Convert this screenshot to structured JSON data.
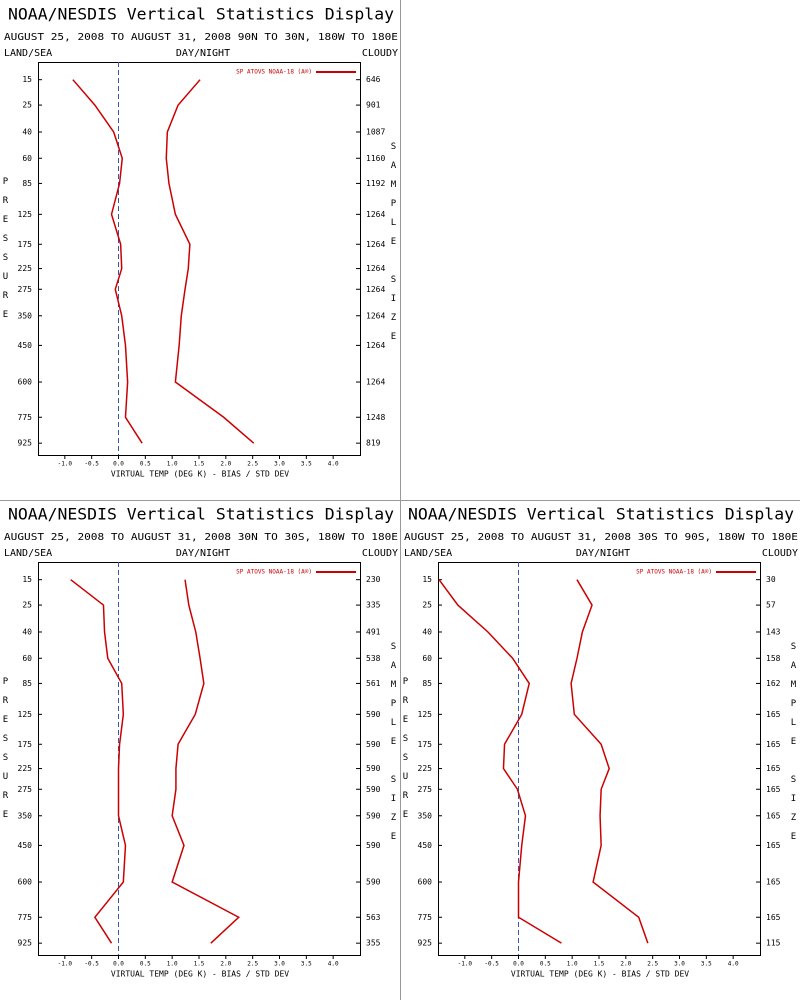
{
  "chart_data": [
    {
      "type": "line",
      "title": "NOAA/NESDIS Vertical Statistics Display",
      "subtitle": "AUGUST 25, 2008 TO AUGUST 31, 2008 90N TO 30N, 180W TO 180E",
      "left_label": "LAND/SEA",
      "center_label": "DAY/NIGHT",
      "right_label": "CLOUDY",
      "xlabel": "VIRTUAL TEMP (DEG K) - BIAS / STD DEV",
      "ylabel": "PRESSURE",
      "y2label": "SAMPLE SIZE",
      "legend": "SP ATOVS NOAA-18 (A®)",
      "yscale": "power",
      "y": [
        15,
        25,
        40,
        60,
        85,
        125,
        175,
        225,
        275,
        350,
        450,
        600,
        775,
        925
      ],
      "ylim": [
        10,
        1000
      ],
      "sample_size": [
        646,
        901,
        1087,
        1160,
        1192,
        1264,
        1264,
        1264,
        1264,
        1264,
        1264,
        1264,
        1248,
        819
      ],
      "xlim": [
        -1.5,
        4.5
      ],
      "xticks": [
        {
          "value": -1.0,
          "label": "-1.0"
        },
        -0.5,
        {
          "value": 0,
          "label": "0.0"
        },
        0.5,
        {
          "value": 1.0,
          "label": "1.0"
        },
        1.5,
        {
          "value": 2.0,
          "label": "2.0"
        },
        2.5,
        {
          "value": 3.0,
          "label": "3.0"
        },
        3.5,
        {
          "value": 4.0,
          "label": "4.0"
        }
      ],
      "series": [
        {
          "color": "#cc0000",
          "values": [
            -0.85,
            -0.44,
            -0.09,
            0.07,
            0.02,
            -0.13,
            0.04,
            0.06,
            -0.06,
            0.06,
            0.13,
            0.17,
            0.13,
            0.44
          ]
        },
        {
          "color": "#cc0000",
          "values": [
            1.52,
            1.11,
            0.91,
            0.89,
            0.94,
            1.06,
            1.33,
            1.3,
            1.24,
            1.17,
            1.13,
            1.06,
            1.96,
            2.52
          ]
        }
      ]
    },
    {
      "type": "line",
      "title": "NOAA/NESDIS Vertical Statistics Display",
      "subtitle": "AUGUST 25, 2008 TO AUGUST 31, 2008 30N TO 30S, 180W TO 180E",
      "left_label": "LAND/SEA",
      "center_label": "DAY/NIGHT",
      "right_label": "CLOUDY",
      "xlabel": "VIRTUAL TEMP (DEG K) - BIAS / STD DEV",
      "ylabel": "PRESSURE",
      "y2label": "SAMPLE SIZE",
      "legend": "SP ATOVS NOAA-18 (A®)",
      "yscale": "power",
      "y": [
        15,
        25,
        40,
        60,
        85,
        125,
        175,
        225,
        275,
        350,
        450,
        600,
        775,
        925
      ],
      "ylim": [
        10,
        1000
      ],
      "sample_size": [
        230,
        335,
        491,
        538,
        561,
        590,
        590,
        590,
        590,
        590,
        590,
        590,
        563,
        355
      ],
      "xlim": [
        -1.5,
        4.5
      ],
      "xticks": [
        {
          "value": -1.0,
          "label": "-1.0"
        },
        -0.5,
        {
          "value": 0,
          "label": "0.0"
        },
        0.5,
        {
          "value": 1.0,
          "label": "1.0"
        },
        1.5,
        {
          "value": 2.0,
          "label": "2.0"
        },
        2.5,
        {
          "value": 3.0,
          "label": "3.0"
        },
        3.5,
        {
          "value": 4.0,
          "label": "4.0"
        }
      ],
      "series": [
        {
          "color": "#cc0000",
          "values": [
            -0.89,
            -0.28,
            -0.26,
            -0.2,
            0.06,
            0.09,
            0.02,
            0,
            0,
            0,
            0.13,
            0.09,
            -0.44,
            -0.13
          ]
        },
        {
          "color": "#cc0000",
          "values": [
            1.24,
            1.31,
            1.44,
            1.52,
            1.59,
            1.43,
            1.11,
            1.07,
            1.07,
            1.0,
            1.22,
            1.0,
            2.24,
            1.72
          ]
        }
      ]
    },
    {
      "type": "line",
      "title": "NOAA/NESDIS Vertical Statistics Display",
      "subtitle": "AUGUST 25, 2008 TO AUGUST 31, 2008 30S TO 90S, 180W TO 180E",
      "left_label": "LAND/SEA",
      "center_label": "DAY/NIGHT",
      "right_label": "CLOUDY",
      "xlabel": "VIRTUAL TEMP (DEG K) - BIAS / STD DEV",
      "ylabel": "PRESSURE",
      "y2label": "SAMPLE SIZE",
      "legend": "SP ATOVS NOAA-18 (A®)",
      "yscale": "power",
      "y": [
        15,
        25,
        40,
        60,
        85,
        125,
        175,
        225,
        275,
        350,
        450,
        600,
        775,
        925
      ],
      "ylim": [
        10,
        1000
      ],
      "sample_size": [
        30,
        57,
        143,
        158,
        162,
        165,
        165,
        165,
        165,
        165,
        165,
        165,
        165,
        115
      ],
      "xlim": [
        -1.5,
        4.5
      ],
      "xticks": [
        {
          "value": -1.0,
          "label": "-1.0"
        },
        -0.5,
        {
          "value": 0,
          "label": "0.0"
        },
        0.5,
        {
          "value": 1.0,
          "label": "1.0"
        },
        1.5,
        {
          "value": 2.0,
          "label": "2.0"
        },
        2.5,
        {
          "value": 3.0,
          "label": "3.0"
        },
        3.5,
        {
          "value": 4.0,
          "label": "4.0"
        }
      ],
      "series": [
        {
          "color": "#cc0000",
          "values": [
            -1.48,
            -1.13,
            -0.57,
            -0.11,
            0.2,
            0.06,
            -0.26,
            -0.28,
            -0.02,
            0.13,
            0.06,
            0,
            0,
            0.8
          ]
        },
        {
          "color": "#cc0000",
          "values": [
            1.09,
            1.37,
            1.19,
            1.09,
            0.98,
            1.04,
            1.54,
            1.69,
            1.54,
            1.52,
            1.54,
            1.39,
            2.24,
            2.41
          ]
        }
      ]
    }
  ]
}
